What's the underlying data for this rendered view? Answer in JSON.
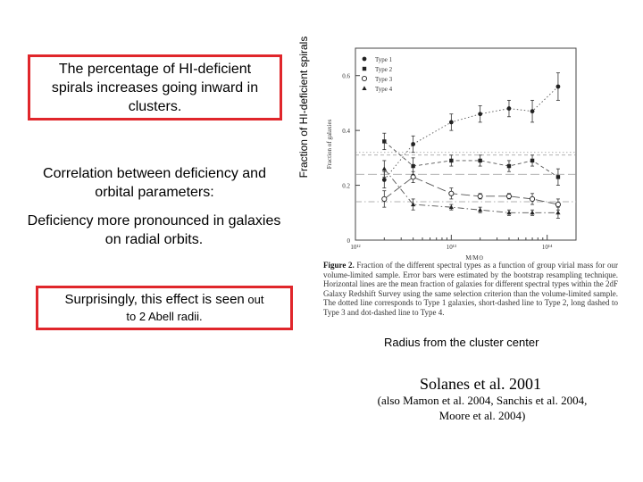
{
  "slide": {
    "box_top_text": "The percentage of HI-deficient spirals increases going inward in clusters.",
    "correlation_text": "Correlation between deficiency and orbital parameters:",
    "deficiency_text": "Deficiency more pronounced in galaxies on radial orbits.",
    "box_bottom_main": "Surprisingly, this effect is seen",
    "box_bottom_tail": " out",
    "box_bottom_line2": "to 2 Abell radii.",
    "vertical_label": "Fraction of HI-deficient spirals",
    "radius_label": "Radius from the cluster center",
    "citation": "Solanes et al. 2001",
    "also": "(also Mamon et al. 2004, Sanchis et al. 2004, Moore et al. 2004)"
  },
  "figure": {
    "caption_lead": "Figure 2.",
    "caption_body": " Fraction of the different spectral types as a function of group virial mass for our volume-limited sample. Error bars were estimated by the bootstrap resampling technique. Horizontal lines are the mean fraction of galaxies for different spectral types within the 2dF Galaxy Redshift Survey using the same selection criterion than the volume-limited sample. The dotted line corresponds to Type 1 galaxies, short-dashed line to Type 2, long dashed to Type 3 and dot-dashed line to Type 4."
  },
  "chart_data": {
    "type": "line",
    "xlabel": "M/M⊙",
    "ylabel": "Fraction of galaxies",
    "xscale": "log",
    "xlim": [
      1000000000000.0,
      200000000000000.0
    ],
    "ylim": [
      0,
      0.7
    ],
    "xticks": [
      1000000000000.0,
      10000000000000.0,
      100000000000000.0
    ],
    "xtick_labels": [
      "10¹²",
      "10¹³",
      "10¹⁴"
    ],
    "yticks": [
      0,
      0.2,
      0.4,
      0.6
    ],
    "ytick_labels": [
      "0",
      "0.2",
      "0.4",
      "0.6"
    ],
    "legend_position": "top-left",
    "x": [
      2000000000000.0,
      4000000000000.0,
      10000000000000.0,
      20000000000000.0,
      40000000000000.0,
      70000000000000.0,
      130000000000000.0
    ],
    "series": [
      {
        "name": "Type 1",
        "marker": "filled-circle",
        "line": "dotted",
        "values": [
          0.22,
          0.35,
          0.43,
          0.46,
          0.48,
          0.47,
          0.56
        ],
        "errors": [
          0.03,
          0.03,
          0.03,
          0.03,
          0.03,
          0.04,
          0.05
        ],
        "mean": 0.32
      },
      {
        "name": "Type 2",
        "marker": "filled-square",
        "line": "short-dashed",
        "values": [
          0.36,
          0.27,
          0.29,
          0.29,
          0.27,
          0.29,
          0.23
        ],
        "errors": [
          0.03,
          0.03,
          0.02,
          0.02,
          0.02,
          0.02,
          0.03
        ],
        "mean": 0.31
      },
      {
        "name": "Type 3",
        "marker": "open-circle",
        "line": "long-dashed",
        "values": [
          0.15,
          0.23,
          0.17,
          0.16,
          0.16,
          0.15,
          0.13
        ],
        "errors": [
          0.03,
          0.02,
          0.02,
          0.01,
          0.01,
          0.02,
          0.02
        ],
        "mean": 0.24
      },
      {
        "name": "Type 4",
        "marker": "filled-triangle",
        "line": "dot-dashed",
        "values": [
          0.26,
          0.13,
          0.12,
          0.11,
          0.1,
          0.1,
          0.1
        ],
        "errors": [
          0.03,
          0.02,
          0.01,
          0.01,
          0.01,
          0.01,
          0.02
        ],
        "mean": 0.14
      }
    ]
  }
}
